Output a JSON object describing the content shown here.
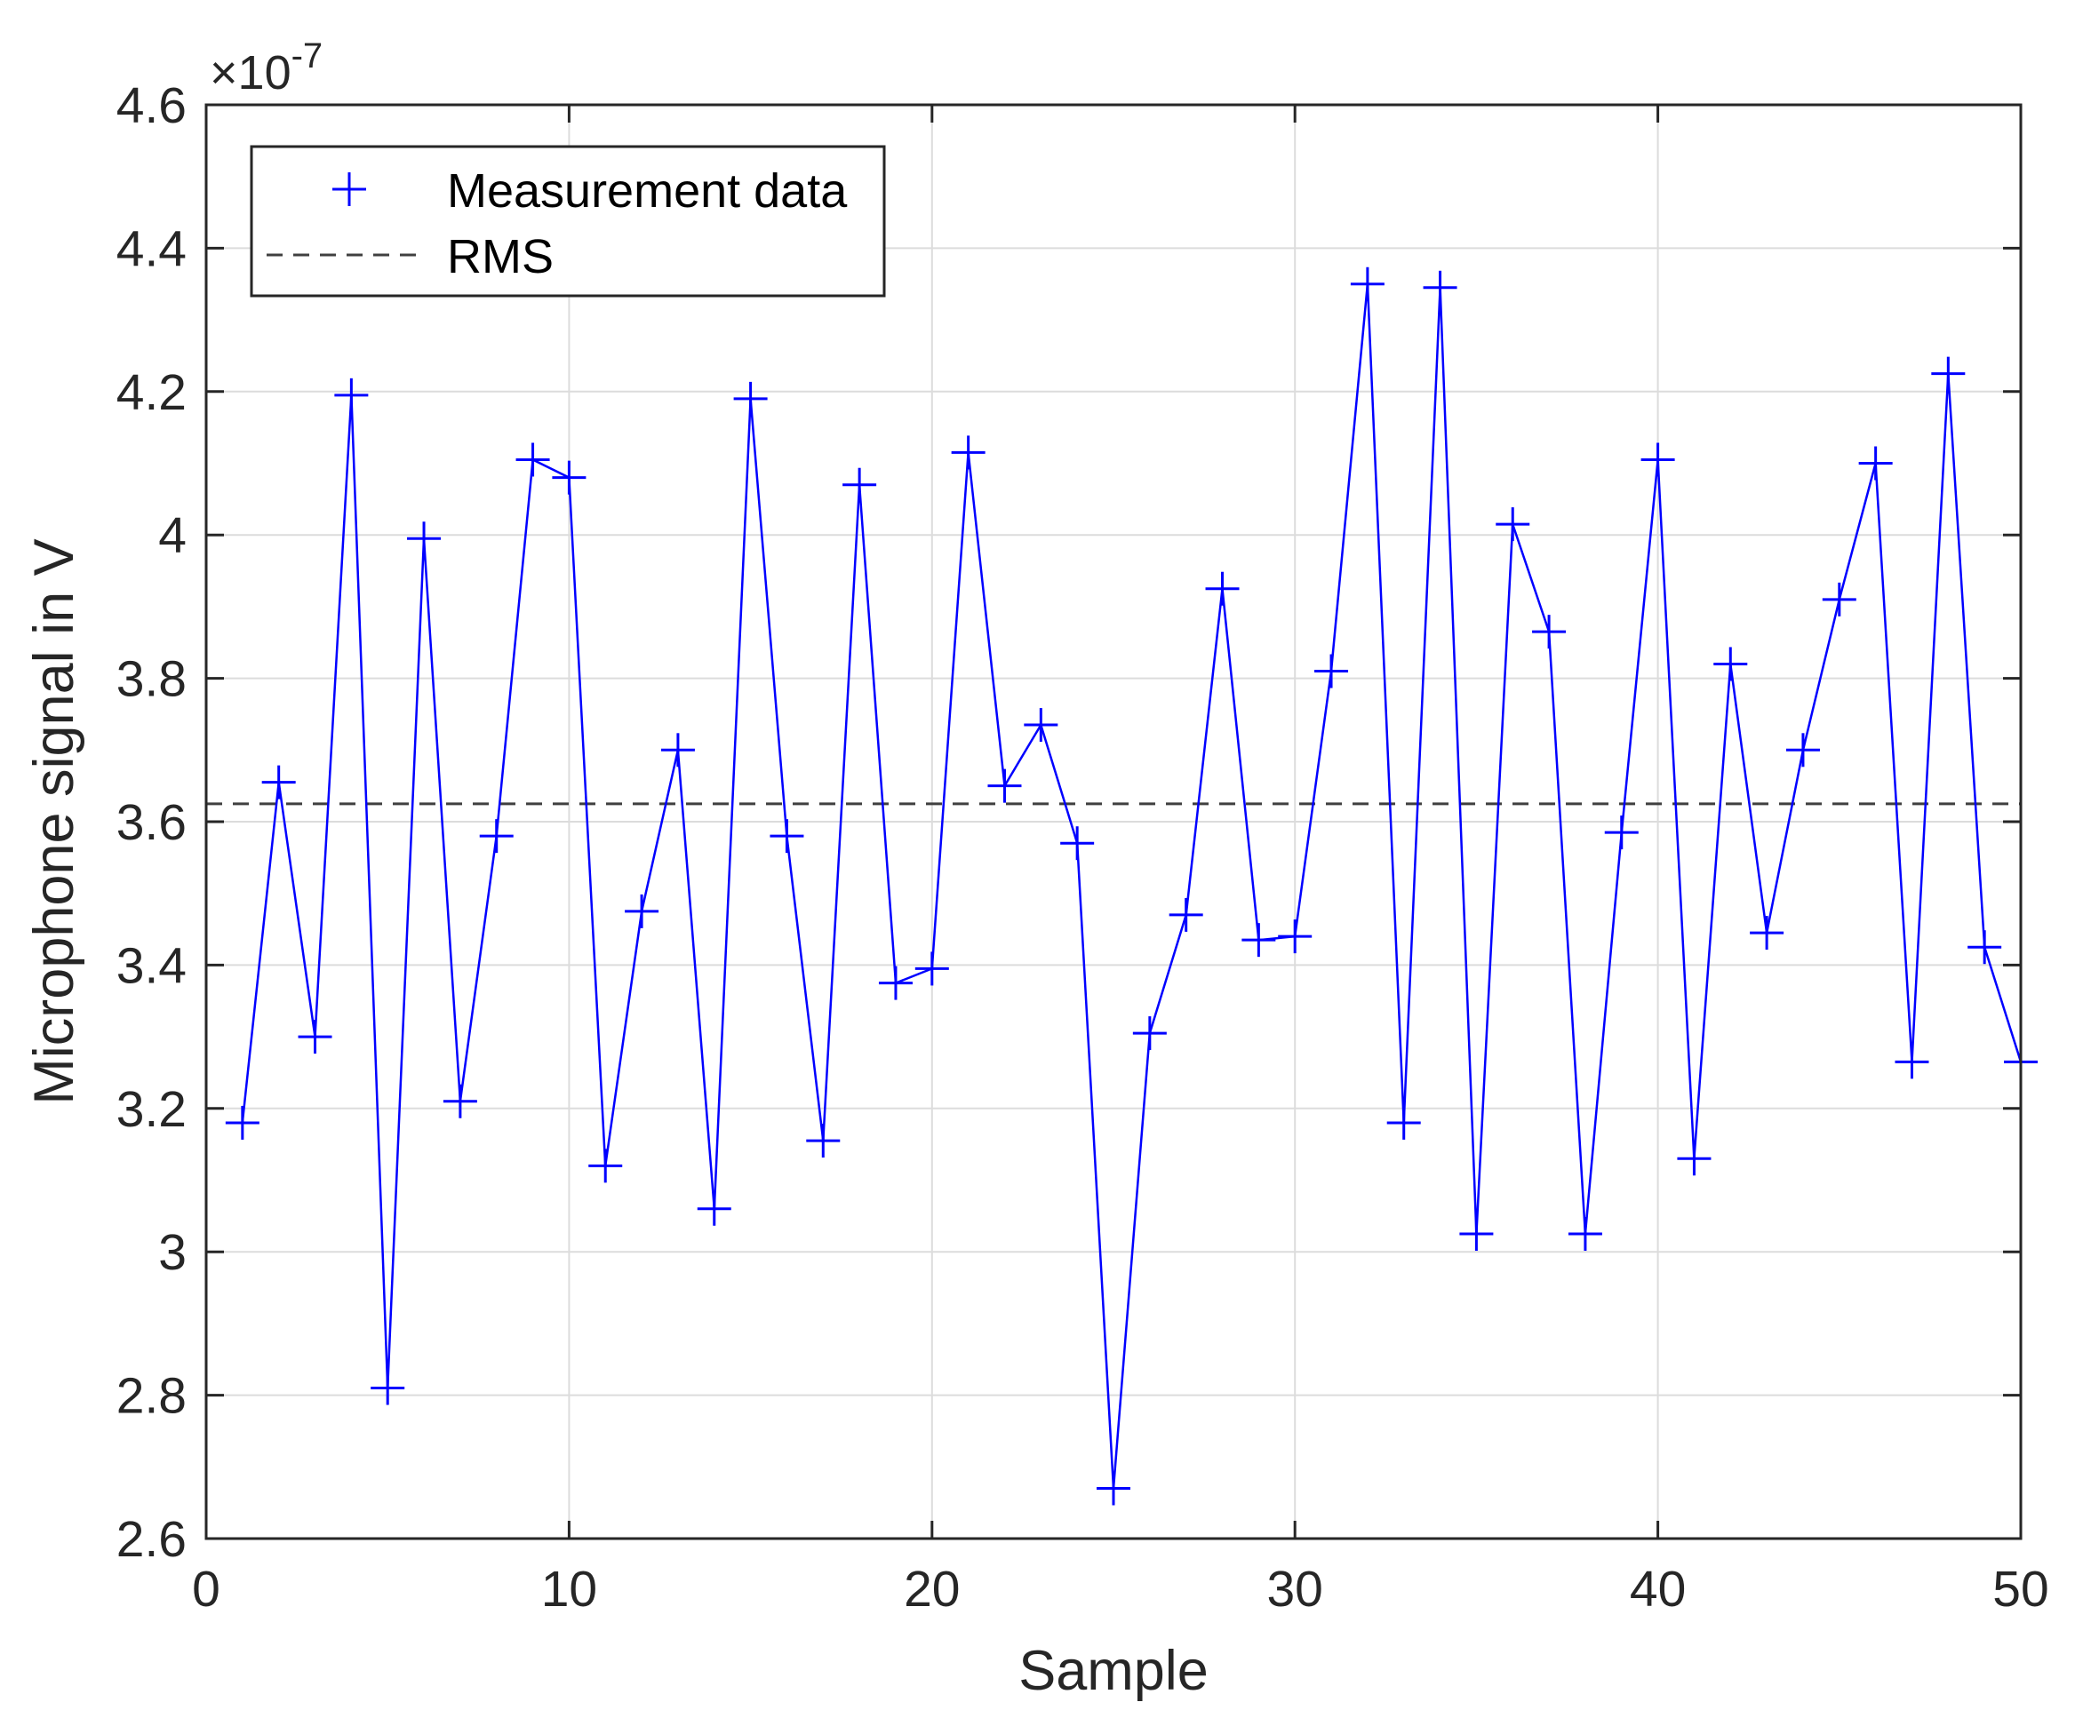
{
  "chart_data": {
    "type": "line",
    "xlabel": "Sample",
    "ylabel": "Microphone signal in V",
    "xlim": [
      0,
      50
    ],
    "ylim": [
      2.6,
      4.6
    ],
    "y_scale_factor": "×10",
    "y_scale_exponent": "-7",
    "xticks": [
      "0",
      "10",
      "20",
      "30",
      "40",
      "50"
    ],
    "yticks": [
      "2.6",
      "2.8",
      "3",
      "3.2",
      "3.4",
      "3.6",
      "3.8",
      "4",
      "4.2",
      "4.4",
      "4.6"
    ],
    "grid": true,
    "legend_position": "top-left",
    "series": [
      {
        "name": "Measurement data",
        "color": "#0000ff",
        "marker": "+",
        "x": [
          1,
          2,
          3,
          4,
          5,
          6,
          7,
          8,
          9,
          10,
          11,
          12,
          13,
          14,
          15,
          16,
          17,
          18,
          19,
          20,
          21,
          22,
          23,
          24,
          25,
          26,
          27,
          28,
          29,
          30,
          31,
          32,
          33,
          34,
          35,
          36,
          37,
          38,
          39,
          40,
          41,
          42,
          43,
          44,
          45,
          46,
          47,
          48,
          49,
          50
        ],
        "y": [
          3.18,
          3.655,
          3.3,
          4.195,
          2.81,
          3.995,
          3.21,
          3.58,
          4.105,
          4.08,
          3.12,
          3.475,
          3.7,
          3.06,
          4.19,
          3.58,
          3.155,
          4.07,
          3.375,
          3.395,
          4.115,
          3.65,
          3.735,
          3.57,
          2.67,
          3.305,
          3.47,
          3.925,
          3.435,
          3.44,
          3.81,
          4.35,
          3.18,
          4.345,
          3.025,
          4.015,
          3.865,
          3.025,
          3.585,
          4.105,
          3.13,
          3.82,
          3.445,
          3.7,
          3.91,
          4.1,
          3.265,
          4.225,
          3.425,
          3.265
        ]
      },
      {
        "name": "RMS",
        "color": "#404040",
        "style": "dashed",
        "y": 3.625
      }
    ]
  }
}
